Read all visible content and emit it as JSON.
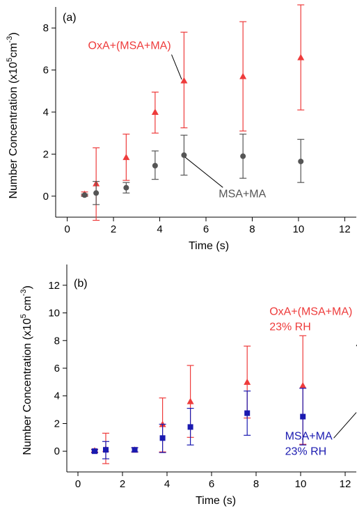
{
  "chart_data": [
    {
      "panel_label": "(a)",
      "type": "scatter",
      "xlabel": "Time (s)",
      "ylabel": [
        "Number Concentration (x10",
        "5",
        "cm",
        "-3",
        ")"
      ],
      "xlim": [
        -0.5,
        12.5
      ],
      "ylim": [
        -1,
        9
      ],
      "xticks": [
        0,
        2,
        4,
        6,
        8,
        10,
        12
      ],
      "yticks": [
        0,
        2,
        4,
        6,
        8
      ],
      "series": [
        {
          "name": "OxA+(MSA+MA)",
          "marker": "triangle",
          "color": "#ee3b3b",
          "x": [
            0.75,
            1.25,
            2.55,
            3.8,
            5.05,
            7.6,
            10.1
          ],
          "y": [
            0.1,
            0.6,
            1.85,
            4.0,
            5.5,
            5.7,
            6.6
          ],
          "err_low": [
            0.05,
            1.75,
            1.1,
            1.0,
            2.25,
            2.6,
            2.5
          ],
          "err_high": [
            0.1,
            1.7,
            1.1,
            0.95,
            2.3,
            2.6,
            2.5
          ]
        },
        {
          "name": "MSA+MA",
          "marker": "circle",
          "color": "#555555",
          "x": [
            0.75,
            1.25,
            2.55,
            3.8,
            5.05,
            7.6,
            10.1
          ],
          "y": [
            0.05,
            0.15,
            0.4,
            1.45,
            1.95,
            1.9,
            1.65
          ],
          "err_low": [
            0.05,
            0.55,
            0.25,
            0.65,
            0.95,
            1.05,
            1.0
          ],
          "err_high": [
            0.05,
            0.55,
            0.25,
            0.7,
            0.95,
            1.05,
            1.05
          ]
        }
      ],
      "annotations": [
        {
          "text": "OxA+(MSA+MA)",
          "color": "#ee3b3b",
          "tx": 0.9,
          "ty": 7.0,
          "ax": 4.95,
          "ay": 5.55
        },
        {
          "text": "MSA+MA",
          "color": "#555555",
          "tx": 6.55,
          "ty": -0.05,
          "ax": 5.1,
          "ay": 1.85
        }
      ]
    },
    {
      "panel_label": "(b)",
      "type": "scatter",
      "xlabel": "Time (s)",
      "ylabel": [
        "Number Concentration (x10",
        "5",
        " cm",
        "-3",
        ")"
      ],
      "xlim": [
        -0.5,
        12.5
      ],
      "ylim": [
        -1.5,
        13.5
      ],
      "xticks": [
        0,
        2,
        4,
        6,
        8,
        10,
        12
      ],
      "yticks": [
        0,
        2,
        4,
        6,
        8,
        10,
        12
      ],
      "series": [
        {
          "name": "OxA+(MSA+MA) 23% RH",
          "marker": "triangle",
          "color": "#ee3b3b",
          "x": [
            0.75,
            1.25,
            2.55,
            3.8,
            5.05,
            7.6,
            10.1
          ],
          "y": [
            0.05,
            0.15,
            0.1,
            1.95,
            3.6,
            5.0,
            4.75
          ],
          "err_low": [
            0.1,
            1.05,
            0.15,
            2.0,
            2.6,
            2.6,
            4.25
          ],
          "err_high": [
            0.1,
            1.15,
            0.15,
            1.9,
            2.6,
            2.6,
            3.6
          ]
        },
        {
          "name": "MSA+MA 23% RH",
          "marker": "square",
          "color": "#1a1ab0",
          "x": [
            0.75,
            1.25,
            2.55,
            3.8,
            5.05,
            7.6,
            10.1
          ],
          "y": [
            0.0,
            0.1,
            0.1,
            0.95,
            1.75,
            2.75,
            2.5
          ],
          "err_low": [
            0.1,
            0.65,
            0.15,
            1.05,
            1.3,
            1.6,
            2.05
          ],
          "err_high": [
            0.1,
            0.6,
            0.15,
            1.0,
            1.35,
            1.6,
            2.05
          ]
        }
      ],
      "annotations": [
        {
          "text": "OxA+(MSA+MA)",
          "text2": "23% RH",
          "color": "#ee3b3b",
          "tx": 8.6,
          "ty": 9.85,
          "ax": 12.5,
          "ay": 7.6
        },
        {
          "text": "MSA+MA",
          "text2": "23% RH",
          "color": "#1a1ab0",
          "tx": 9.3,
          "ty": 0.85,
          "ax": 12.5,
          "ay": 2.8
        }
      ]
    }
  ]
}
